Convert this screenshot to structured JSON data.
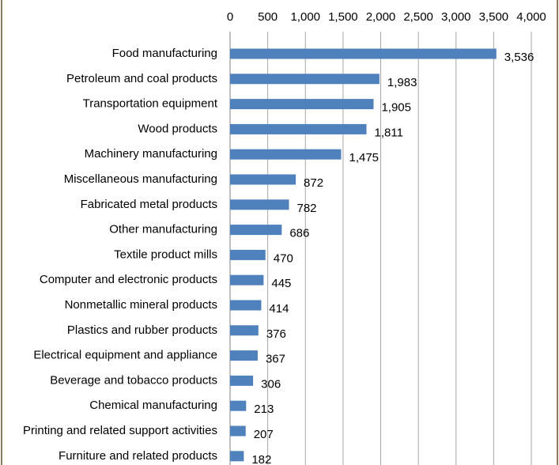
{
  "chart_data": {
    "type": "bar",
    "orientation": "horizontal",
    "categories": [
      "Food manufacturing",
      "Petroleum and coal products",
      "Transportation equipment",
      "Wood products",
      "Machinery manufacturing",
      "Miscellaneous manufacturing",
      "Fabricated metal products",
      "Other manufacturing",
      "Textile product mills",
      "Computer and electronic products",
      "Nonmetallic mineral products",
      "Plastics and rubber products",
      "Electrical equipment and appliance",
      "Beverage and tobacco products",
      "Chemical manufacturing",
      "Printing and related support activities",
      "Furniture and related products"
    ],
    "values": [
      3536,
      1983,
      1905,
      1811,
      1475,
      872,
      782,
      686,
      470,
      445,
      414,
      376,
      367,
      306,
      213,
      207,
      182
    ],
    "value_labels": [
      "3,536",
      "1,983",
      "1,905",
      "1,811",
      "1,475",
      "872",
      "782",
      "686",
      "470",
      "445",
      "414",
      "376",
      "367",
      "306",
      "213",
      "207",
      "182"
    ],
    "color": "#4f81bd",
    "xlim": [
      0,
      4000
    ],
    "xticks": [
      0,
      500,
      {
        "value": 1000,
        "label": "1,000"
      },
      {
        "value": 1500,
        "label": "1,500"
      },
      {
        "value": 2000,
        "label": "2,000"
      },
      {
        "value": 2500,
        "label": "2,500"
      },
      {
        "value": 3000,
        "label": "3,000"
      },
      {
        "value": 3500,
        "label": "3,500"
      },
      {
        "value": 4000,
        "label": "4,000"
      }
    ],
    "grid": true
  }
}
